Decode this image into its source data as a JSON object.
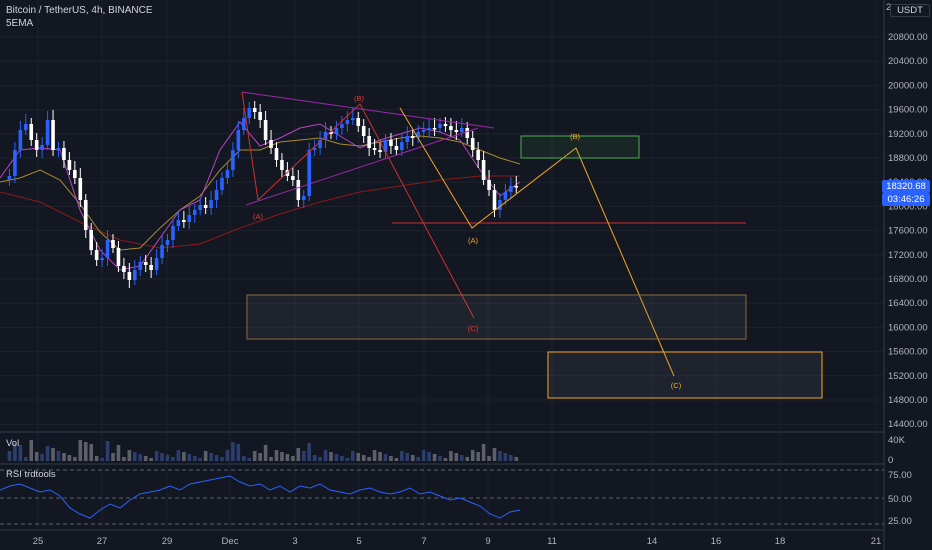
{
  "header": {
    "title": "Bitcoin / TetherUS, 4h, BINANCE",
    "indicator": "5EMA"
  },
  "price_axis": {
    "currency": "USDT",
    "top_partial": "2",
    "labels": [
      "20800.00",
      "20400.00",
      "20000.00",
      "19600.00",
      "19200.00",
      "18800.00",
      "18400.00",
      "18000.00",
      "17600.00",
      "17200.00",
      "16800.00",
      "16400.00",
      "16000.00",
      "15600.00",
      "15200.00",
      "14800.00",
      "14400.00"
    ],
    "last_price": "18320.68",
    "countdown": "03:46:26"
  },
  "volume_panel": {
    "label": "Vol",
    "axis": [
      "40K",
      "0"
    ]
  },
  "rsi_panel": {
    "label": "RSI trdtools",
    "axis": [
      "75.00",
      "50.00",
      "25.00"
    ]
  },
  "time_axis": {
    "labels": [
      "25",
      "27",
      "29",
      "Dec",
      "3",
      "5",
      "7",
      "9",
      "11",
      "14",
      "16",
      "18",
      "21"
    ]
  },
  "waves": {
    "red": [
      "(A)",
      "(B)",
      "(C)"
    ],
    "orange": [
      "(A)",
      "(B)",
      "(C)"
    ]
  },
  "colors": {
    "background": "#131722",
    "bull_candle": "#2962ff",
    "bear_candle": "#ffffff",
    "ema_purple": "#9c27b0",
    "ema_yellow": "#c9a227",
    "ema_red": "#b71c1c",
    "wave_red": "#e53935",
    "wave_orange": "#f5a623",
    "triangle": "#9c27b0",
    "rsi_line": "#2962ff",
    "target_box_green": "#4caf50"
  }
}
